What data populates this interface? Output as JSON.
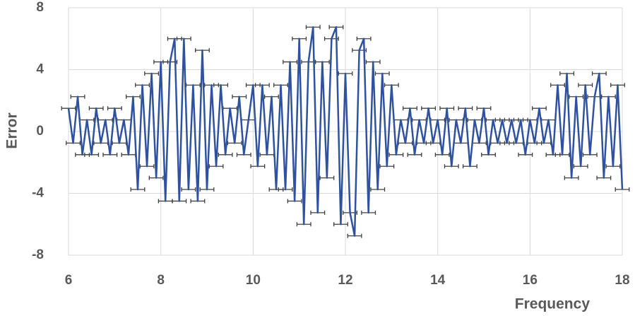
{
  "chart_data": {
    "type": "line",
    "xlabel": "Frequency",
    "ylabel": "Error",
    "xlim": [
      6,
      18
    ],
    "xticks": [
      6,
      8,
      10,
      12,
      14,
      16,
      18
    ],
    "ylim": [
      -8,
      8
    ],
    "yticks": [
      -8,
      -4,
      0,
      4,
      8
    ],
    "grid": true,
    "x": [
      6,
      6.1,
      6.2,
      6.3,
      6.4,
      6.5,
      6.6,
      6.7,
      6.8,
      6.9,
      7,
      7.1,
      7.2,
      7.3,
      7.4,
      7.5,
      7.6,
      7.7,
      7.8,
      7.9,
      8,
      8.1,
      8.2,
      8.3,
      8.4,
      8.5,
      8.6,
      8.7,
      8.8,
      8.9,
      9,
      9.1,
      9.2,
      9.3,
      9.4,
      9.5,
      9.6,
      9.7,
      9.8,
      9.9,
      10,
      10.1,
      10.2,
      10.3,
      10.4,
      10.5,
      10.6,
      10.7,
      10.8,
      10.9,
      11,
      11.1,
      11.2,
      11.3,
      11.4,
      11.5,
      11.6,
      11.7,
      11.8,
      11.9,
      12,
      12.1,
      12.2,
      12.3,
      12.4,
      12.5,
      12.6,
      12.7,
      12.8,
      12.9,
      13,
      13.1,
      13.2,
      13.3,
      13.4,
      13.5,
      13.6,
      13.7,
      13.8,
      13.9,
      14,
      14.1,
      14.2,
      14.3,
      14.4,
      14.5,
      14.6,
      14.7,
      14.8,
      14.9,
      15,
      15.1,
      15.2,
      15.3,
      15.4,
      15.5,
      15.6,
      15.7,
      15.8,
      15.9,
      16,
      16.1,
      16.2,
      16.3,
      16.4,
      16.5,
      16.6,
      16.7,
      16.8,
      16.9,
      17,
      17.1,
      17.2,
      17.3,
      17.4,
      17.5,
      17.6,
      17.7,
      17.8,
      17.9,
      18
    ],
    "series": [
      {
        "color": "#2f52a0",
        "errcolor": "#404040",
        "xerr": 0.15,
        "values": [
          1.5,
          -0.75,
          2.25,
          -1.5,
          0.75,
          -1.5,
          1.5,
          -0.75,
          0.75,
          -1.5,
          1.5,
          -0.75,
          0.75,
          -1.5,
          2.25,
          -3.75,
          3,
          -2.25,
          3.75,
          -3,
          4.5,
          -4.5,
          4.5,
          6,
          -4.5,
          6,
          -3.75,
          3,
          -4.5,
          5.25,
          -3.75,
          3,
          -2.25,
          3,
          -1.5,
          1.5,
          -0.75,
          2.25,
          -1.5,
          0.75,
          3,
          -2.25,
          3,
          -1.5,
          2.25,
          -3.75,
          3,
          -3.75,
          4.5,
          -4.5,
          6,
          -6,
          4.5,
          6.75,
          -5.25,
          4.5,
          -3,
          6,
          6.75,
          -6,
          3.75,
          -5.25,
          -6.75,
          5.25,
          6,
          -5.25,
          4.5,
          -3.75,
          3.75,
          -2.25,
          3,
          -1.5,
          0.75,
          -0.75,
          1.5,
          -1.5,
          0.75,
          -0.75,
          1.5,
          -0.75,
          0.75,
          -1.5,
          1.5,
          -2.25,
          0.75,
          -0.75,
          1.5,
          -2.25,
          0.75,
          -0.75,
          1.5,
          -1.5,
          0.75,
          -0.75,
          0.75,
          -0.75,
          0.75,
          -0.75,
          0.75,
          -1.5,
          0.75,
          -0.75,
          1.5,
          -0.75,
          0.75,
          -1.5,
          3,
          -1.5,
          3.75,
          -3,
          2.25,
          -2.25,
          3,
          -1.5,
          2.25,
          3.75,
          -3,
          2.25,
          -2.25,
          3,
          -3.75
        ]
      }
    ]
  }
}
